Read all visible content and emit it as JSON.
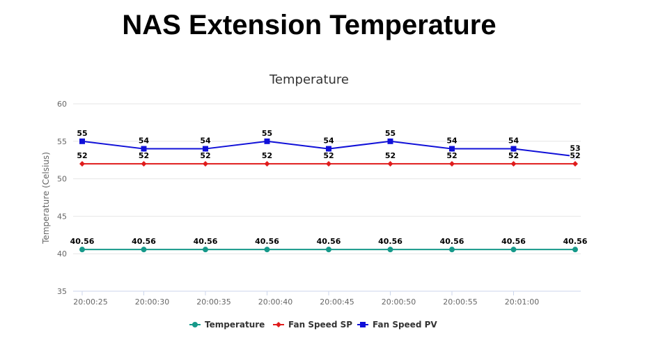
{
  "page": {
    "title": "NAS Extension Temperature"
  },
  "chart_data": {
    "type": "line",
    "title": "Temperature",
    "xlabel": "",
    "ylabel": "Temperature (Celsius)",
    "ylim": [
      35,
      60
    ],
    "yticks": [
      35,
      40,
      45,
      50,
      55,
      60
    ],
    "x": [
      "20:00:25",
      "20:00:30",
      "20:00:35",
      "20:00:40",
      "20:00:45",
      "20:00:50",
      "20:00:55",
      "20:01:00",
      "20:01:05"
    ],
    "xtick_labels": [
      "20:00:25",
      "20:00:30",
      "20:00:35",
      "20:00:40",
      "20:00:45",
      "20:00:50",
      "20:00:55",
      "20:01:00"
    ],
    "grid": true,
    "legend_position": "bottom",
    "series": [
      {
        "name": "Temperature",
        "color": "#16998a",
        "marker": "circle",
        "values": [
          40.56,
          40.56,
          40.56,
          40.56,
          40.56,
          40.56,
          40.56,
          40.56,
          40.56
        ]
      },
      {
        "name": "Fan Speed SP",
        "color": "#e01c1c",
        "marker": "diamond",
        "values": [
          52,
          52,
          52,
          52,
          52,
          52,
          52,
          52,
          52
        ]
      },
      {
        "name": "Fan Speed PV",
        "color": "#1010d8",
        "marker": "square",
        "values": [
          55,
          54,
          54,
          55,
          54,
          55,
          54,
          54,
          53
        ]
      }
    ]
  }
}
